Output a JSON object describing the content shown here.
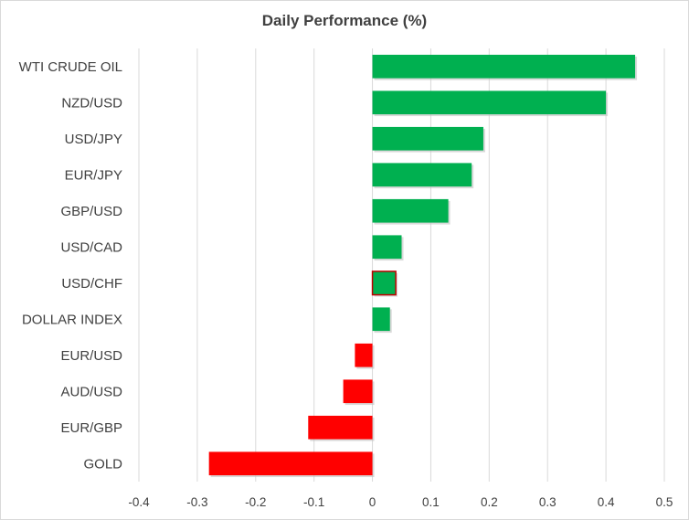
{
  "chart_data": {
    "type": "bar",
    "orientation": "horizontal",
    "title": "Daily Performance (%)",
    "xlabel": "",
    "ylabel": "",
    "categories": [
      "WTI CRUDE OIL",
      "NZD/USD",
      "USD/JPY",
      "EUR/JPY",
      "GBP/USD",
      "USD/CAD",
      "USD/CHF",
      "DOLLAR INDEX",
      "EUR/USD",
      "AUD/USD",
      "EUR/GBP",
      "GOLD"
    ],
    "values": [
      0.45,
      0.4,
      0.19,
      0.17,
      0.13,
      0.05,
      0.04,
      0.03,
      -0.03,
      -0.05,
      -0.11,
      -0.28
    ],
    "xlim": [
      -0.4,
      0.5
    ],
    "xticks": [
      -0.4,
      -0.3,
      -0.2,
      -0.1,
      0,
      0.1,
      0.2,
      0.3,
      0.4,
      0.5
    ],
    "xtick_labels": [
      "-0.4",
      "-0.3",
      "-0.2",
      "-0.1",
      "0",
      "0.1",
      "0.2",
      "0.3",
      "0.4",
      "0.5"
    ],
    "grid": "vertical",
    "legend": "none",
    "colors": {
      "positive": "#00b050",
      "negative": "#ff0000",
      "highlight_border": "#c00000",
      "gridline": "#d9d9d9",
      "text": "#404040"
    },
    "highlighted_category": "USD/CHF"
  }
}
